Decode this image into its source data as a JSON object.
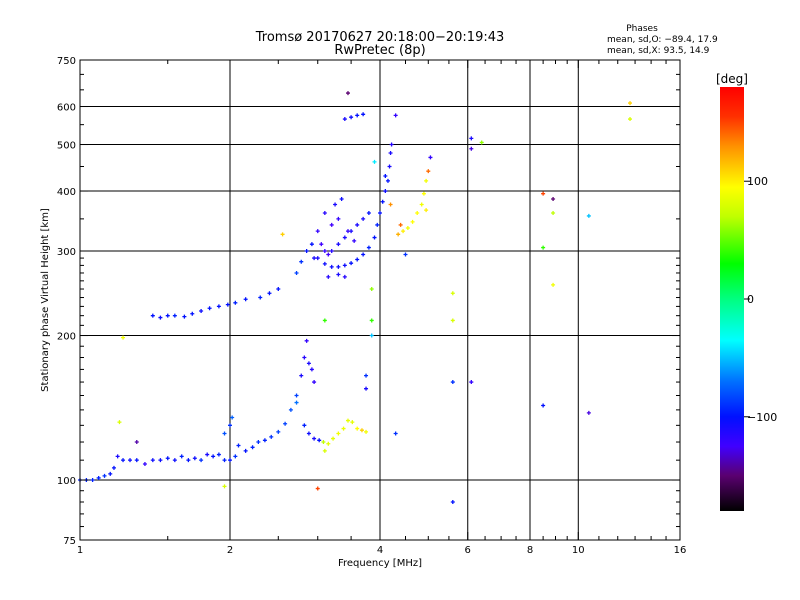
{
  "chart_data": {
    "type": "scatter",
    "title": "Tromsø 20170627 20:18:00−20:19:43",
    "subtitle": "RwPretec (8p)",
    "xlabel": "Frequency [MHz]",
    "ylabel": "Stationary phase Virtual Height [km]",
    "xscale": "log",
    "yscale": "log",
    "xlim": [
      1,
      16
    ],
    "ylim": [
      75,
      750
    ],
    "xticks": [
      1,
      2,
      4,
      6,
      8,
      10,
      16
    ],
    "xgrid": [
      2,
      4,
      6,
      8,
      10
    ],
    "yticks": [
      75,
      100,
      200,
      300,
      400,
      500,
      600,
      750
    ],
    "ygrid": [
      100,
      200,
      300,
      400,
      500,
      600
    ],
    "grid": true,
    "phase_box": {
      "title": "Phases",
      "line_o": "mean, sd,O: −89.4, 17.9",
      "line_x": "mean, sd,X:  93.5, 14.9"
    },
    "colorbar": {
      "label": "[deg]",
      "range": [
        -180,
        180
      ],
      "ticks": [
        100,
        0,
        -100
      ],
      "tick_labels": [
        "100",
        "0",
        "−100"
      ],
      "stops": [
        {
          "v": -180,
          "c": "#000000"
        },
        {
          "v": -150,
          "c": "#5a0070"
        },
        {
          "v": -125,
          "c": "#4000ff"
        },
        {
          "v": -100,
          "c": "#0010ff"
        },
        {
          "v": -70,
          "c": "#0070ff"
        },
        {
          "v": -35,
          "c": "#00ffff"
        },
        {
          "v": 0,
          "c": "#00ff80"
        },
        {
          "v": 30,
          "c": "#00ff00"
        },
        {
          "v": 70,
          "c": "#c0ff00"
        },
        {
          "v": 95,
          "c": "#ffff00"
        },
        {
          "v": 130,
          "c": "#ff9000"
        },
        {
          "v": 155,
          "c": "#ff3000"
        },
        {
          "v": 180,
          "c": "#ff0000"
        }
      ]
    },
    "points_fields": [
      "frequency_MHz",
      "height_km",
      "phase_deg"
    ],
    "points": [
      [
        1.0,
        100,
        -95
      ],
      [
        1.03,
        100,
        -95
      ],
      [
        1.06,
        100,
        -95
      ],
      [
        1.09,
        101,
        -95
      ],
      [
        1.12,
        102,
        -90
      ],
      [
        1.15,
        103,
        -100
      ],
      [
        1.17,
        106,
        -100
      ],
      [
        1.19,
        112,
        -110
      ],
      [
        1.22,
        110,
        -100
      ],
      [
        1.26,
        110,
        -105
      ],
      [
        1.3,
        110,
        -100
      ],
      [
        1.35,
        108,
        -120
      ],
      [
        1.4,
        110,
        -105
      ],
      [
        1.45,
        110,
        -105
      ],
      [
        1.5,
        111,
        -100
      ],
      [
        1.55,
        110,
        -105
      ],
      [
        1.6,
        112,
        -95
      ],
      [
        1.65,
        110,
        -100
      ],
      [
        1.7,
        111,
        -105
      ],
      [
        1.75,
        110,
        -90
      ],
      [
        1.8,
        113,
        -110
      ],
      [
        1.85,
        112,
        -100
      ],
      [
        1.9,
        113,
        -95
      ],
      [
        1.95,
        110,
        -95
      ],
      [
        2.0,
        110,
        -100
      ],
      [
        2.05,
        112,
        -90
      ],
      [
        2.0,
        130,
        -90
      ],
      [
        1.95,
        125,
        -80
      ],
      [
        2.02,
        135,
        -75
      ],
      [
        2.08,
        118,
        -95
      ],
      [
        2.15,
        115,
        -100
      ],
      [
        2.22,
        117,
        -95
      ],
      [
        2.28,
        120,
        -90
      ],
      [
        2.35,
        121,
        -95
      ],
      [
        2.42,
        123,
        -90
      ],
      [
        2.5,
        126,
        -85
      ],
      [
        2.58,
        131,
        -85
      ],
      [
        2.65,
        140,
        -80
      ],
      [
        2.72,
        150,
        -85
      ],
      [
        2.78,
        165,
        -110
      ],
      [
        2.82,
        180,
        -115
      ],
      [
        2.85,
        195,
        -120
      ],
      [
        2.88,
        175,
        -110
      ],
      [
        2.92,
        170,
        -115
      ],
      [
        2.95,
        160,
        -120
      ],
      [
        2.72,
        145,
        -70
      ],
      [
        2.82,
        130,
        -95
      ],
      [
        2.88,
        125,
        -105
      ],
      [
        2.95,
        122,
        -110
      ],
      [
        3.02,
        121,
        -100
      ],
      [
        3.08,
        120,
        70
      ],
      [
        3.15,
        119,
        85
      ],
      [
        3.22,
        122,
        85
      ],
      [
        3.3,
        125,
        90
      ],
      [
        3.38,
        128,
        88
      ],
      [
        3.45,
        133,
        85
      ],
      [
        3.52,
        132,
        85
      ],
      [
        3.6,
        128,
        95
      ],
      [
        3.68,
        127,
        110
      ],
      [
        3.75,
        126,
        90
      ],
      [
        3.1,
        115,
        80
      ],
      [
        1.4,
        220,
        -100
      ],
      [
        1.45,
        218,
        -105
      ],
      [
        1.5,
        220,
        -100
      ],
      [
        1.55,
        220,
        -95
      ],
      [
        1.62,
        219,
        -100
      ],
      [
        1.68,
        222,
        -100
      ],
      [
        1.75,
        225,
        -105
      ],
      [
        1.82,
        228,
        -100
      ],
      [
        1.9,
        230,
        -100
      ],
      [
        1.98,
        232,
        -100
      ],
      [
        2.05,
        234,
        -95
      ],
      [
        2.15,
        238,
        -100
      ],
      [
        2.3,
        240,
        -95
      ],
      [
        2.4,
        245,
        -100
      ],
      [
        2.5,
        250,
        -100
      ],
      [
        2.72,
        270,
        -85
      ],
      [
        2.78,
        285,
        -90
      ],
      [
        2.85,
        300,
        -100
      ],
      [
        2.92,
        310,
        -100
      ],
      [
        2.95,
        290,
        -110
      ],
      [
        3.0,
        290,
        -110
      ],
      [
        3.1,
        282,
        -105
      ],
      [
        3.2,
        278,
        -105
      ],
      [
        3.3,
        278,
        -105
      ],
      [
        3.4,
        280,
        -105
      ],
      [
        3.5,
        283,
        -100
      ],
      [
        3.6,
        288,
        -100
      ],
      [
        3.7,
        295,
        -100
      ],
      [
        3.8,
        305,
        -95
      ],
      [
        3.9,
        320,
        -100
      ],
      [
        3.95,
        340,
        -95
      ],
      [
        4.0,
        360,
        -100
      ],
      [
        4.05,
        380,
        -100
      ],
      [
        4.1,
        400,
        -105
      ],
      [
        4.15,
        420,
        -100
      ],
      [
        4.18,
        450,
        -110
      ],
      [
        4.2,
        480,
        -110
      ],
      [
        4.22,
        500,
        -115
      ],
      [
        4.1,
        430,
        -100
      ],
      [
        3.0,
        330,
        -120
      ],
      [
        3.05,
        310,
        -125
      ],
      [
        3.1,
        300,
        -120
      ],
      [
        3.15,
        295,
        -125
      ],
      [
        3.2,
        300,
        -115
      ],
      [
        3.3,
        310,
        -110
      ],
      [
        3.4,
        320,
        -110
      ],
      [
        3.5,
        330,
        -110
      ],
      [
        3.6,
        340,
        -110
      ],
      [
        3.7,
        350,
        -110
      ],
      [
        3.8,
        360,
        -100
      ],
      [
        3.2,
        340,
        -125
      ],
      [
        3.3,
        350,
        -120
      ],
      [
        3.1,
        360,
        -115
      ],
      [
        3.25,
        375,
        -110
      ],
      [
        3.35,
        385,
        -105
      ],
      [
        3.45,
        330,
        -120
      ],
      [
        3.55,
        315,
        -120
      ],
      [
        3.15,
        265,
        -115
      ],
      [
        3.3,
        268,
        -110
      ],
      [
        3.4,
        265,
        -115
      ],
      [
        4.35,
        325,
        120
      ],
      [
        4.45,
        330,
        100
      ],
      [
        4.55,
        335,
        90
      ],
      [
        4.65,
        345,
        95
      ],
      [
        4.75,
        360,
        95
      ],
      [
        4.85,
        375,
        90
      ],
      [
        4.9,
        395,
        95
      ],
      [
        4.95,
        420,
        90
      ],
      [
        5.0,
        440,
        140
      ],
      [
        4.95,
        365,
        100
      ],
      [
        4.4,
        340,
        140
      ],
      [
        4.2,
        375,
        130
      ],
      [
        3.4,
        565,
        -110
      ],
      [
        3.5,
        570,
        -105
      ],
      [
        3.6,
        575,
        -100
      ],
      [
        3.7,
        578,
        -100
      ],
      [
        3.45,
        640,
        -150
      ],
      [
        4.3,
        575,
        -120
      ],
      [
        1.22,
        198,
        90
      ],
      [
        1.2,
        132,
        80
      ],
      [
        1.3,
        120,
        -140
      ],
      [
        1.95,
        97,
        80
      ],
      [
        2.55,
        325,
        110
      ],
      [
        3.0,
        96,
        150
      ],
      [
        4.3,
        125,
        -90
      ],
      [
        5.6,
        160,
        -90
      ],
      [
        5.6,
        90,
        -100
      ],
      [
        5.6,
        245,
        80
      ],
      [
        5.6,
        215,
        80
      ],
      [
        6.1,
        160,
        -120
      ],
      [
        6.1,
        515,
        -110
      ],
      [
        6.1,
        490,
        -130
      ],
      [
        6.4,
        505,
        60
      ],
      [
        8.5,
        395,
        150
      ],
      [
        8.5,
        305,
        40
      ],
      [
        8.5,
        143,
        -100
      ],
      [
        8.9,
        385,
        -150
      ],
      [
        8.9,
        360,
        70
      ],
      [
        8.9,
        255,
        90
      ],
      [
        10.5,
        355,
        -50
      ],
      [
        10.5,
        138,
        -130
      ],
      [
        12.7,
        610,
        110
      ],
      [
        12.7,
        565,
        80
      ],
      [
        3.85,
        200,
        -50
      ],
      [
        3.85,
        215,
        40
      ],
      [
        3.75,
        165,
        -90
      ],
      [
        3.75,
        155,
        -110
      ],
      [
        4.5,
        295,
        -90
      ],
      [
        5.05,
        470,
        -120
      ],
      [
        3.9,
        460,
        -40
      ],
      [
        3.85,
        250,
        60
      ],
      [
        3.1,
        215,
        40
      ]
    ]
  }
}
